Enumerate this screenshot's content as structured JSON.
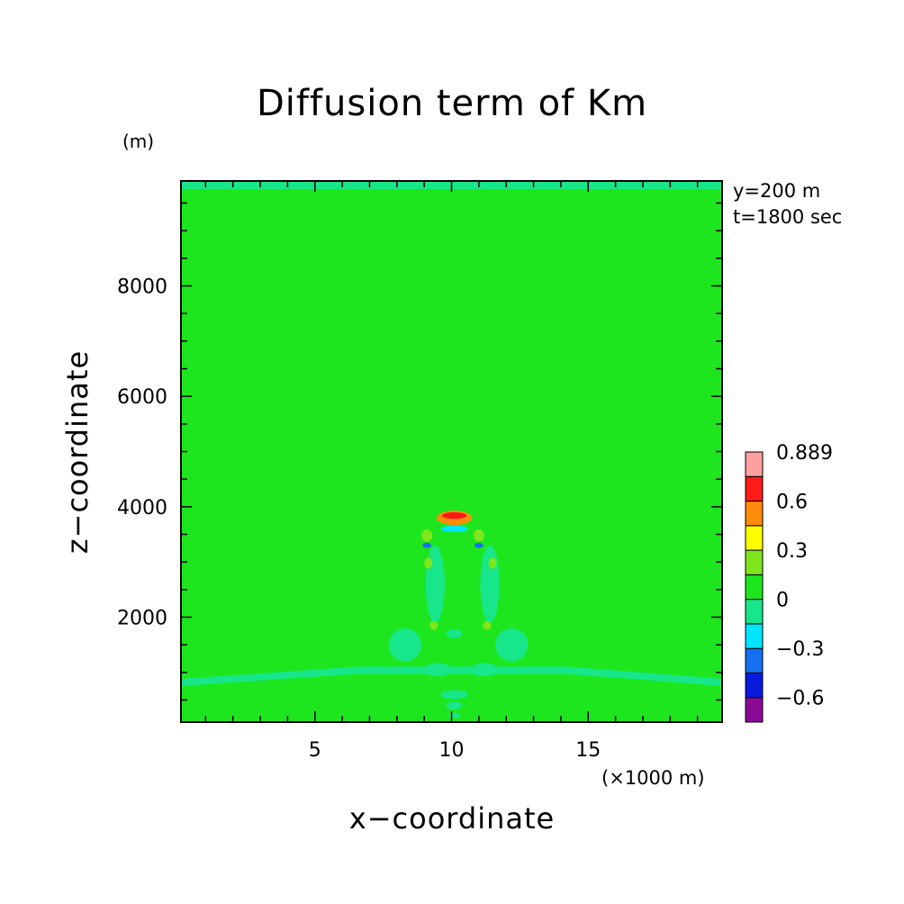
{
  "chart_data": {
    "type": "heatmap",
    "title": "Diffusion term of Km",
    "xlabel": "x−coordinate",
    "ylabel": "z−coordinate",
    "x_unit_label": "(×1000 m)",
    "y_unit_label": "(m)",
    "annotations": [
      "y=200 m",
      "t=1800 sec"
    ],
    "xlim": [
      0.1,
      19.9
    ],
    "ylim": [
      100,
      9900
    ],
    "x_ticks": [
      {
        "value": 5,
        "label": "5"
      },
      {
        "value": 10,
        "label": "10"
      },
      {
        "value": 15,
        "label": "15"
      }
    ],
    "y_ticks": [
      {
        "value": 2000,
        "label": "2000"
      },
      {
        "value": 4000,
        "label": "4000"
      },
      {
        "value": 6000,
        "label": "6000"
      },
      {
        "value": 8000,
        "label": "8000"
      }
    ],
    "background_level": "0",
    "colorbar": {
      "levels": [
        {
          "label": "",
          "color": "#8a0a96"
        },
        {
          "label": "−0.6",
          "color": "#0a1adc"
        },
        {
          "label": "",
          "color": "#1470f0"
        },
        {
          "label": "−0.3",
          "color": "#00e5ff"
        },
        {
          "label": "",
          "color": "#18e68a"
        },
        {
          "label": "0",
          "color": "#1ee61e"
        },
        {
          "label": "",
          "color": "#7ee61a"
        },
        {
          "label": "0.3",
          "color": "#ffff00"
        },
        {
          "label": "",
          "color": "#ff8c0a"
        },
        {
          "label": "0.6",
          "color": "#ff1a1a"
        },
        {
          "label": "0.889",
          "color": "#ffa0a0"
        }
      ]
    },
    "regions": [
      {
        "level": "−0.1",
        "shape": "band",
        "x": [
          0.1,
          6.6,
          14.2,
          19.9
        ],
        "z": [
          820,
          1040,
          1040,
          820
        ]
      },
      {
        "level": "−0.1",
        "shape": "band",
        "x": [
          0.1,
          19.9
        ],
        "z": [
          9820,
          9820
        ]
      },
      {
        "level": "−0.1",
        "shape": "blob",
        "x": 9.4,
        "z": 2600,
        "rx": 0.35,
        "rz": 700
      },
      {
        "level": "−0.1",
        "shape": "blob",
        "x": 11.4,
        "z": 2600,
        "rx": 0.35,
        "rz": 700
      },
      {
        "level": "−0.1",
        "shape": "blob",
        "x": 8.3,
        "z": 1500,
        "rx": 0.6,
        "rz": 300
      },
      {
        "level": "−0.1",
        "shape": "blob",
        "x": 12.2,
        "z": 1500,
        "rx": 0.6,
        "rz": 300
      },
      {
        "level": "−0.1",
        "shape": "blob",
        "x": 9.5,
        "z": 1050,
        "rx": 0.5,
        "rz": 120
      },
      {
        "level": "−0.1",
        "shape": "blob",
        "x": 11.2,
        "z": 1050,
        "rx": 0.5,
        "rz": 120
      },
      {
        "level": "−0.1",
        "shape": "blob",
        "x": 10.1,
        "z": 600,
        "rx": 0.5,
        "rz": 80
      },
      {
        "level": "−0.1",
        "shape": "blob",
        "x": 10.1,
        "z": 400,
        "rx": 0.3,
        "rz": 70
      },
      {
        "level": "−0.1",
        "shape": "blob",
        "x": 10.1,
        "z": 220,
        "rx": 0.2,
        "rz": 50
      },
      {
        "level": "−0.1",
        "shape": "blob",
        "x": 10.1,
        "z": 1700,
        "rx": 0.3,
        "rz": 80
      },
      {
        "level": "0.1",
        "shape": "blob",
        "x": 9.15,
        "z": 2980,
        "rx": 0.15,
        "rz": 100
      },
      {
        "level": "0.1",
        "shape": "blob",
        "x": 11.5,
        "z": 2980,
        "rx": 0.15,
        "rz": 100
      },
      {
        "level": "0.1",
        "shape": "blob",
        "x": 9.35,
        "z": 1850,
        "rx": 0.15,
        "rz": 80
      },
      {
        "level": "0.1",
        "shape": "blob",
        "x": 11.3,
        "z": 1850,
        "rx": 0.15,
        "rz": 80
      },
      {
        "level": "0.2",
        "shape": "blob",
        "x": 9.1,
        "z": 3480,
        "rx": 0.2,
        "rz": 110
      },
      {
        "level": "0.2",
        "shape": "blob",
        "x": 11.0,
        "z": 3480,
        "rx": 0.2,
        "rz": 110
      },
      {
        "level": "−0.4",
        "shape": "blob",
        "x": 9.1,
        "z": 3300,
        "rx": 0.16,
        "rz": 50
      },
      {
        "level": "−0.4",
        "shape": "blob",
        "x": 11.0,
        "z": 3300,
        "rx": 0.16,
        "rz": 50
      },
      {
        "level": "−0.3",
        "shape": "blob",
        "x": 10.1,
        "z": 3600,
        "rx": 0.5,
        "rz": 60
      },
      {
        "level": "0.5",
        "shape": "blob",
        "x": 10.1,
        "z": 3800,
        "rx": 0.65,
        "rz": 130
      },
      {
        "level": "0.6",
        "shape": "blob",
        "x": 10.1,
        "z": 3840,
        "rx": 0.45,
        "rz": 60
      }
    ]
  }
}
